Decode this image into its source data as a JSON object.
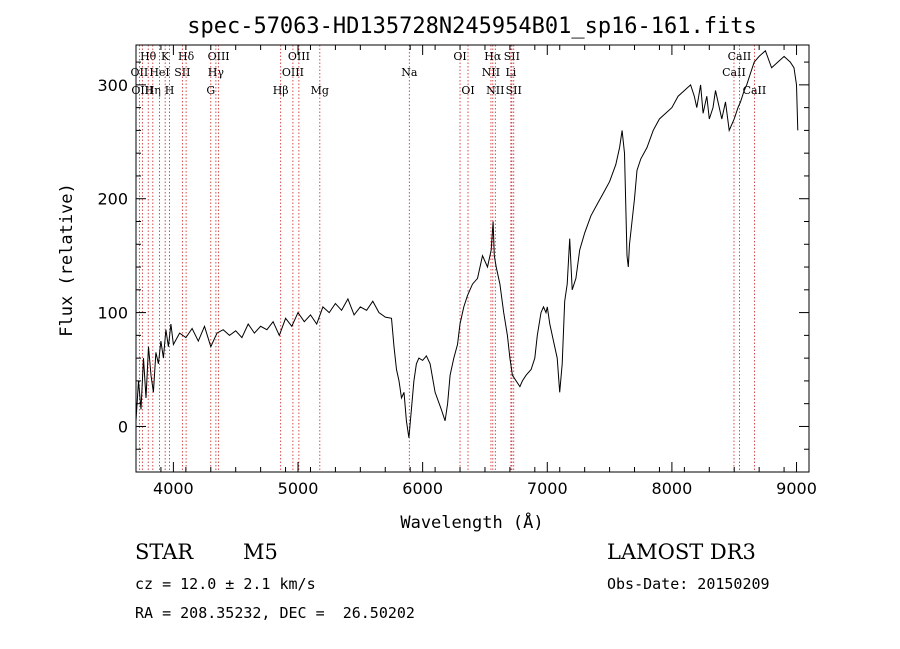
{
  "chart_data": {
    "type": "line",
    "title": "spec-57063-HD135728N245954B01_sp16-161.fits",
    "xlabel": "Wavelength (Å)",
    "ylabel": "Flux (relative)",
    "xlim": [
      3700,
      9100
    ],
    "ylim": [
      -40,
      335
    ],
    "xticks": [
      4000,
      5000,
      6000,
      7000,
      8000,
      9000
    ],
    "yticks": [
      0,
      100,
      200,
      300
    ],
    "grid": false,
    "line_color": "#000000",
    "marker_color": "#cc2222",
    "series": [
      {
        "x": [
          3700,
          3720,
          3740,
          3760,
          3780,
          3800,
          3820,
          3840,
          3860,
          3880,
          3900,
          3920,
          3940,
          3960,
          3980,
          4000,
          4050,
          4100,
          4150,
          4200,
          4250,
          4300,
          4350,
          4400,
          4450,
          4500,
          4550,
          4600,
          4650,
          4700,
          4750,
          4800,
          4850,
          4900,
          4950,
          5000,
          5050,
          5100,
          5150,
          5200,
          5250,
          5300,
          5350,
          5400,
          5450,
          5500,
          5550,
          5600,
          5650,
          5700,
          5750,
          5770,
          5790,
          5810,
          5830,
          5850,
          5870,
          5890,
          5910,
          5930,
          5950,
          5970,
          6000,
          6030,
          6060,
          6100,
          6150,
          6180,
          6200,
          6220,
          6250,
          6280,
          6300,
          6330,
          6360,
          6400,
          6440,
          6480,
          6520,
          6550,
          6565,
          6575,
          6590,
          6620,
          6650,
          6680,
          6700,
          6720,
          6750,
          6780,
          6800,
          6830,
          6870,
          6900,
          6920,
          6950,
          6970,
          6990,
          7000,
          7020,
          7050,
          7080,
          7100,
          7120,
          7140,
          7160,
          7180,
          7200,
          7230,
          7260,
          7300,
          7350,
          7400,
          7450,
          7500,
          7550,
          7580,
          7600,
          7620,
          7640,
          7650,
          7660,
          7680,
          7700,
          7720,
          7750,
          7800,
          7850,
          7900,
          7950,
          8000,
          8050,
          8100,
          8150,
          8180,
          8200,
          8230,
          8250,
          8280,
          8300,
          8330,
          8350,
          8400,
          8430,
          8460,
          8480,
          8500,
          8530,
          8550,
          8580,
          8600,
          8630,
          8660,
          8700,
          8750,
          8800,
          8850,
          8900,
          8950,
          8980,
          9000,
          9010
        ],
        "y": [
          5,
          40,
          15,
          60,
          25,
          70,
          45,
          30,
          65,
          55,
          75,
          60,
          85,
          70,
          90,
          72,
          82,
          78,
          86,
          75,
          88,
          70,
          82,
          85,
          80,
          84,
          78,
          90,
          82,
          88,
          85,
          92,
          80,
          95,
          88,
          100,
          92,
          98,
          90,
          105,
          100,
          108,
          102,
          112,
          98,
          105,
          102,
          110,
          100,
          96,
          95,
          70,
          50,
          40,
          25,
          30,
          5,
          -10,
          15,
          40,
          55,
          60,
          58,
          62,
          55,
          30,
          15,
          5,
          20,
          45,
          60,
          72,
          90,
          105,
          115,
          125,
          130,
          150,
          140,
          155,
          180,
          150,
          140,
          125,
          100,
          80,
          60,
          45,
          40,
          35,
          40,
          45,
          50,
          60,
          80,
          100,
          105,
          100,
          105,
          90,
          75,
          60,
          30,
          55,
          110,
          125,
          165,
          120,
          130,
          155,
          170,
          185,
          195,
          205,
          215,
          230,
          245,
          260,
          240,
          150,
          140,
          160,
          180,
          200,
          225,
          235,
          245,
          260,
          270,
          275,
          280,
          290,
          295,
          300,
          290,
          280,
          300,
          275,
          290,
          270,
          280,
          295,
          270,
          285,
          260,
          265,
          270,
          280,
          285,
          295,
          300,
          310,
          320,
          325,
          330,
          315,
          320,
          325,
          320,
          315,
          300,
          260
        ]
      }
    ],
    "line_marks": [
      {
        "w": 3727,
        "labels": [
          "OII"
        ],
        "row": 1
      },
      {
        "w": 3751,
        "labels": [
          "OIII"
        ],
        "row": 2
      },
      {
        "w": 3798,
        "labels": [
          "Hθ"
        ],
        "row": 0
      },
      {
        "w": 3835,
        "labels": [
          "Hη"
        ],
        "row": 2
      },
      {
        "w": 3889,
        "labels": [
          "HeI"
        ],
        "row": 1
      },
      {
        "w": 3934,
        "labels": [
          "K"
        ],
        "row": 0
      },
      {
        "w": 3969,
        "labels": [
          "H"
        ],
        "row": 2
      },
      {
        "w": 4072,
        "labels": [
          "SII"
        ],
        "row": 1
      },
      {
        "w": 4102,
        "labels": [
          "Hδ"
        ],
        "row": 0
      },
      {
        "w": 4300,
        "labels": [
          "G"
        ],
        "row": 2
      },
      {
        "w": 4341,
        "labels": [
          "Hγ"
        ],
        "row": 1
      },
      {
        "w": 4363,
        "labels": [
          "OIII"
        ],
        "row": 0
      },
      {
        "w": 4861,
        "labels": [
          "Hβ"
        ],
        "row": 2
      },
      {
        "w": 4959,
        "labels": [
          "OIII"
        ],
        "row": 1
      },
      {
        "w": 5007,
        "labels": [
          "OIII"
        ],
        "row": 0
      },
      {
        "w": 5175,
        "labels": [
          "Mg"
        ],
        "row": 2
      },
      {
        "w": 5893,
        "labels": [
          "Na"
        ],
        "row": 1
      },
      {
        "w": 6300,
        "labels": [
          "OI"
        ],
        "row": 0
      },
      {
        "w": 6364,
        "labels": [
          "OI"
        ],
        "row": 2
      },
      {
        "w": 6548,
        "labels": [
          "NII"
        ],
        "row": 1
      },
      {
        "w": 6563,
        "labels": [
          "Hα"
        ],
        "row": 0
      },
      {
        "w": 6583,
        "labels": [
          "NII"
        ],
        "row": 2
      },
      {
        "w": 6708,
        "labels": [
          "Li"
        ],
        "row": 1
      },
      {
        "w": 6716,
        "labels": [
          "SII"
        ],
        "row": 0
      },
      {
        "w": 6731,
        "labels": [
          "SII"
        ],
        "row": 2
      },
      {
        "w": 8498,
        "labels": [
          "CaII"
        ],
        "row": 1
      },
      {
        "w": 8542,
        "labels": [
          "CaII"
        ],
        "row": 0
      },
      {
        "w": 8662,
        "labels": [
          "CaII"
        ],
        "row": 2
      }
    ]
  },
  "info": {
    "obj_type": "STAR",
    "subclass": "M5",
    "survey": "LAMOST DR3",
    "cz": "cz = 12.0 ± 2.1 km/s",
    "obs_date": "Obs-Date: 20150209",
    "coords": "RA = 208.35232, DEC =  26.50202"
  }
}
